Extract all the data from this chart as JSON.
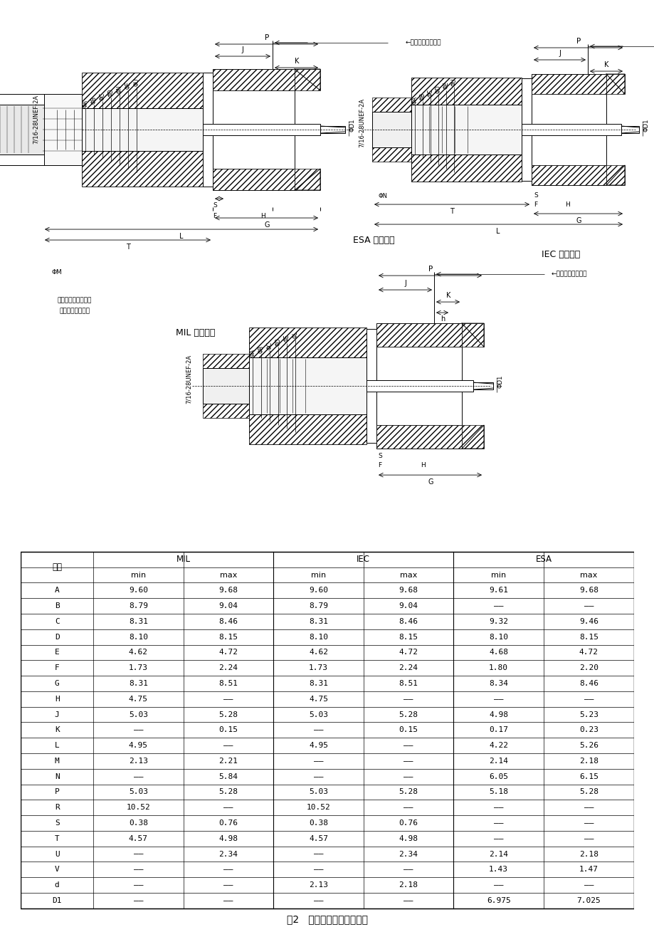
{
  "page_bg": "#ffffff",
  "esa_section_label": "ESA 标准界面",
  "fig_caption": "图2   插孔接触件连接器界面",
  "mil_std_label": "MIL 标准界面",
  "iec_std_label": "IEC 标准界面",
  "esa_std_label": "ESA 标准界面",
  "elec_mech_ref": "电气和机械基准面",
  "note_text1": "开槽和收口要满足电",
  "note_text2": "气和机械性能要求",
  "thread_label": "7/16-28UNEF-2A",
  "size_label": "尺寸",
  "mil_label": "MIL",
  "iec_label": "IEC",
  "esa_label": "ESA",
  "min_label": "min",
  "max_label": "max",
  "table_rows": [
    [
      "A",
      "9.60",
      "9.68",
      "9.60",
      "9.68",
      "9.61",
      "9.68"
    ],
    [
      "B",
      "8.79",
      "9.04",
      "8.79",
      "9.04",
      "——",
      "——"
    ],
    [
      "C",
      "8.31",
      "8.46",
      "8.31",
      "8.46",
      "9.32",
      "9.46"
    ],
    [
      "D",
      "8.10",
      "8.15",
      "8.10",
      "8.15",
      "8.10",
      "8.15"
    ],
    [
      "E",
      "4.62",
      "4.72",
      "4.62",
      "4.72",
      "4.68",
      "4.72"
    ],
    [
      "F",
      "1.73",
      "2.24",
      "1.73",
      "2.24",
      "1.80",
      "2.20"
    ],
    [
      "G",
      "8.31",
      "8.51",
      "8.31",
      "8.51",
      "8.34",
      "8.46"
    ],
    [
      "H",
      "4.75",
      "——",
      "4.75",
      "——",
      "——",
      "——"
    ],
    [
      "J",
      "5.03",
      "5.28",
      "5.03",
      "5.28",
      "4.98",
      "5.23"
    ],
    [
      "K",
      "——",
      "0.15",
      "——",
      "0.15",
      "0.17",
      "0.23"
    ],
    [
      "L",
      "4.95",
      "——",
      "4.95",
      "——",
      "4.22",
      "5.26"
    ],
    [
      "M",
      "2.13",
      "2.21",
      "——",
      "——",
      "2.14",
      "2.18"
    ],
    [
      "N",
      "——",
      "5.84",
      "——",
      "——",
      "6.05",
      "6.15"
    ],
    [
      "P",
      "5.03",
      "5.28",
      "5.03",
      "5.28",
      "5.18",
      "5.28"
    ],
    [
      "R",
      "10.52",
      "——",
      "10.52",
      "——",
      "——",
      "——"
    ],
    [
      "S",
      "0.38",
      "0.76",
      "0.38",
      "0.76",
      "——",
      "——"
    ],
    [
      "T",
      "4.57",
      "4.98",
      "4.57",
      "4.98",
      "——",
      "——"
    ],
    [
      "U",
      "——",
      "2.34",
      "——",
      "2.34",
      "2.14",
      "2.18"
    ],
    [
      "V",
      "——",
      "——",
      "——",
      "——",
      "1.43",
      "1.47"
    ],
    [
      "d",
      "——",
      "——",
      "2.13",
      "2.18",
      "——",
      "——"
    ],
    [
      "D1",
      "——",
      "——",
      "——",
      "——",
      "6.975",
      "7.025"
    ]
  ]
}
